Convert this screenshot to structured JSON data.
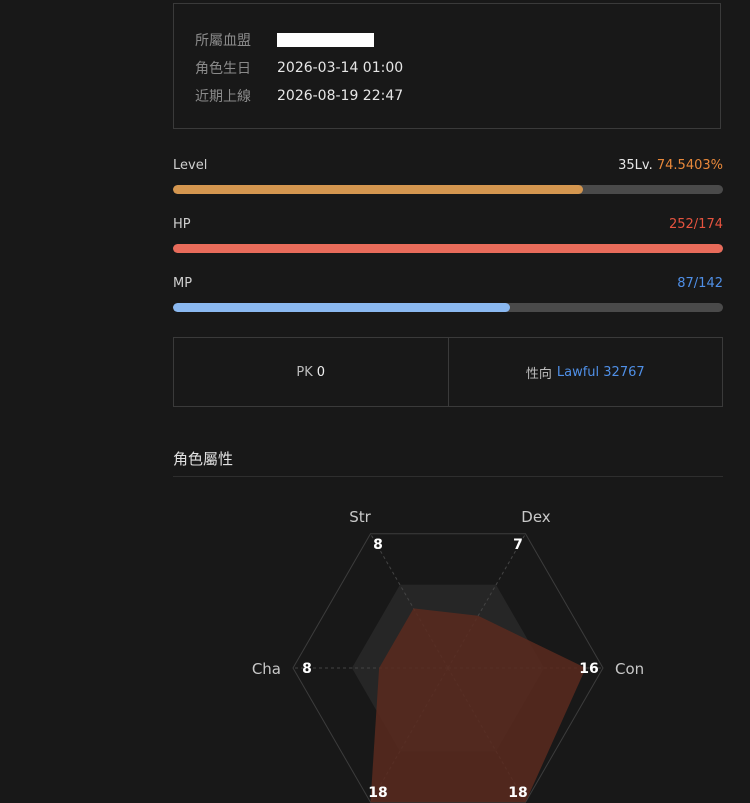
{
  "profile": {
    "rows": [
      {
        "label": "所屬血盟",
        "value": ""
      },
      {
        "label": "角色生日",
        "value": "2026-03-14 01:00"
      },
      {
        "label": "近期上線",
        "value": "2026-08-19 22:47"
      }
    ]
  },
  "stats": {
    "level": {
      "name": "Level",
      "level_text": "35Lv.",
      "percent_text": "74.5403%",
      "fill_fraction": 0.745,
      "color": "#d4964f",
      "text_color": "#e8883a"
    },
    "hp": {
      "name": "HP",
      "value_text": "252/174",
      "fill_fraction": 1.0,
      "color": "#e86b5a",
      "text_color": "#e5533f"
    },
    "mp": {
      "name": "MP",
      "value_text": "87/142",
      "fill_fraction": 0.613,
      "color": "#8ab8f0",
      "text_color": "#4f8fe6"
    }
  },
  "pk": {
    "label": "PK",
    "value": "0"
  },
  "alignment": {
    "label": "性向",
    "value": "Lawful 32767"
  },
  "attributes": {
    "title": "角色屬性",
    "max": 18,
    "axes": [
      {
        "label": "Str",
        "value": "8"
      },
      {
        "label": "Dex",
        "value": "7"
      },
      {
        "label": "Con",
        "value": "16"
      },
      {
        "label": "",
        "value": "18"
      },
      {
        "label": "",
        "value": "18"
      },
      {
        "label": "Cha",
        "value": "8"
      }
    ],
    "fill_color": "#5a2a1e"
  }
}
